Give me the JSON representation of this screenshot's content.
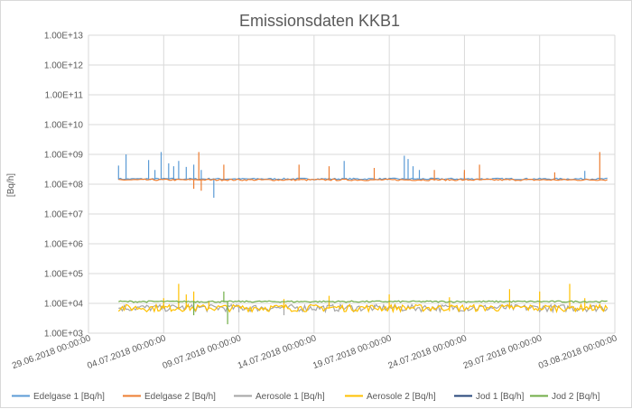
{
  "chart_data": {
    "type": "line",
    "title": "Emissionsdaten KKB1",
    "xlabel": "",
    "ylabel": "[Bq/h]",
    "yscale": "log",
    "ylim": [
      1000,
      10000000000000
    ],
    "xlim": [
      "2018-06-29 00:00:00",
      "2018-08-03 00:00:00"
    ],
    "grid": "vertical and horizontal major gridlines",
    "legend": "bottom",
    "ytick_labels": [
      "1.00E+03",
      "1.00E+04",
      "1.00E+05",
      "1.00E+06",
      "1.00E+07",
      "1.00E+08",
      "1.00E+09",
      "1.00E+10",
      "1.00E+11",
      "1.00E+12",
      "1.00E+13"
    ],
    "xtick_labels": [
      "29.06.2018 00:00:00",
      "04.07.2018 00:00:00",
      "09.07.2018 00:00:00",
      "14.07.2018 00:00:00",
      "19.07.2018 00:00:00",
      "24.07.2018 00:00:00",
      "29.07.2018 00:00:00",
      "03.08.2018 00:00:00"
    ],
    "series": [
      {
        "name": "Edelgase 1 [Bq/h]",
        "color": "#5b9bd5",
        "baseline": 150000000,
        "spikes": [
          [
            "2018-07-01",
            420000000
          ],
          [
            "2018-07-01 12:00",
            1000000000
          ],
          [
            "2018-07-03",
            650000000
          ],
          [
            "2018-07-03 10:00",
            300000000
          ],
          [
            "2018-07-03 20:00",
            1200000000
          ],
          [
            "2018-07-04 08:00",
            500000000
          ],
          [
            "2018-07-04 16:00",
            400000000
          ],
          [
            "2018-07-05",
            600000000
          ],
          [
            "2018-07-05 12:00",
            380000000
          ],
          [
            "2018-07-06",
            450000000
          ],
          [
            "2018-07-06 12:00",
            300000000
          ],
          [
            "2018-07-07 08:00",
            35000000
          ],
          [
            "2018-07-16",
            600000000
          ],
          [
            "2018-07-20",
            900000000
          ],
          [
            "2018-07-20 06:00",
            700000000
          ],
          [
            "2018-07-20 14:00",
            400000000
          ],
          [
            "2018-07-21",
            300000000
          ],
          [
            "2018-07-24",
            250000000
          ],
          [
            "2018-08-01",
            280000000
          ]
        ]
      },
      {
        "name": "Edelgase 2 [Bq/h]",
        "color": "#ed7d31",
        "baseline": 140000000,
        "spikes": [
          [
            "2018-07-06",
            70000000
          ],
          [
            "2018-07-06 08:00",
            1200000000
          ],
          [
            "2018-07-06 12:00",
            60000000
          ],
          [
            "2018-07-08",
            450000000
          ],
          [
            "2018-07-13",
            450000000
          ],
          [
            "2018-07-15",
            400000000
          ],
          [
            "2018-07-18",
            350000000
          ],
          [
            "2018-07-22",
            300000000
          ],
          [
            "2018-07-24",
            300000000
          ],
          [
            "2018-07-25",
            450000000
          ],
          [
            "2018-07-30",
            250000000
          ],
          [
            "2018-08-02",
            1200000000
          ]
        ]
      },
      {
        "name": "Aerosole 1 [Bq/h]",
        "color": "#a5a5a5",
        "baseline": 7000,
        "spikes": [
          [
            "2018-07-05",
            12000
          ],
          [
            "2018-07-09",
            5000
          ],
          [
            "2018-07-12",
            4000
          ],
          [
            "2018-07-18",
            9000
          ]
        ]
      },
      {
        "name": "Aerosole 2 [Bq/h]",
        "color": "#ffc000",
        "baseline": 7000,
        "spikes": [
          [
            "2018-07-04",
            15000
          ],
          [
            "2018-07-05",
            45000
          ],
          [
            "2018-07-05 12:00",
            20000
          ],
          [
            "2018-07-06",
            25000
          ],
          [
            "2018-07-07",
            12000
          ],
          [
            "2018-07-12",
            14000
          ],
          [
            "2018-07-15",
            18000
          ],
          [
            "2018-07-19",
            20000
          ],
          [
            "2018-07-23",
            16000
          ],
          [
            "2018-07-27",
            30000
          ],
          [
            "2018-07-29",
            25000
          ],
          [
            "2018-07-31",
            45000
          ],
          [
            "2018-08-01",
            15000
          ]
        ]
      },
      {
        "name": "Jod 1 [Bq/h]",
        "color": "#264478",
        "baseline": null,
        "spikes": []
      },
      {
        "name": "Jod 2 [Bq/h]",
        "color": "#70ad47",
        "baseline": 11500,
        "spikes": [
          [
            "2018-07-08",
            25000
          ],
          [
            "2018-07-08 06:00",
            2000
          ],
          [
            "2018-07-06",
            4000
          ]
        ]
      }
    ]
  }
}
